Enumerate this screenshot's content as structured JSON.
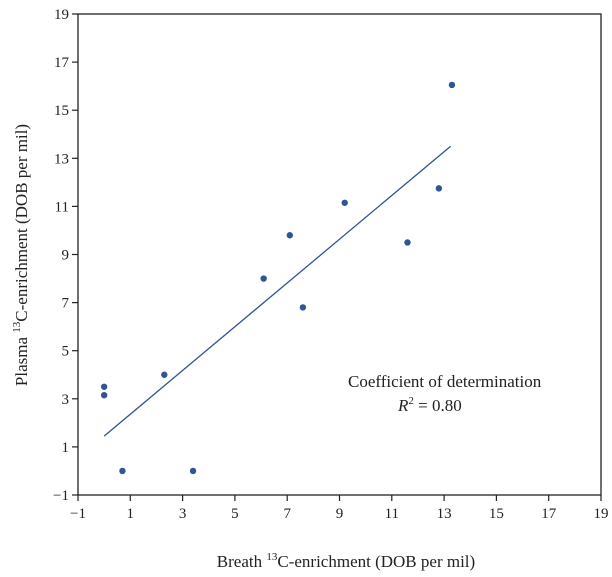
{
  "chart_data": {
    "type": "scatter",
    "xlabel_prefix": "Breath ",
    "xlabel_sup": "13",
    "xlabel_suffix": "C-enrichment (DOB per mil)",
    "ylabel_prefix": "Plasma ",
    "ylabel_sup": "13",
    "ylabel_suffix": "C-enrichment (DOB per mil)",
    "xlim": [
      -1,
      19
    ],
    "ylim": [
      -1,
      19
    ],
    "xticks": [
      -1,
      1,
      3,
      5,
      7,
      9,
      11,
      13,
      15,
      17,
      19
    ],
    "yticks": [
      -1,
      1,
      3,
      5,
      7,
      9,
      11,
      13,
      15,
      17,
      19
    ],
    "points": [
      {
        "x": 0.0,
        "y": 3.5
      },
      {
        "x": 0.0,
        "y": 3.15
      },
      {
        "x": 0.7,
        "y": 0.0
      },
      {
        "x": 2.3,
        "y": 4.0
      },
      {
        "x": 3.4,
        "y": 0.0
      },
      {
        "x": 6.1,
        "y": 8.0
      },
      {
        "x": 7.1,
        "y": 9.8
      },
      {
        "x": 7.6,
        "y": 6.8
      },
      {
        "x": 9.2,
        "y": 11.15
      },
      {
        "x": 11.6,
        "y": 9.5
      },
      {
        "x": 12.8,
        "y": 11.75
      },
      {
        "x": 13.3,
        "y": 16.05
      }
    ],
    "fit_line": {
      "x": [
        0.0,
        13.25
      ],
      "y": [
        1.45,
        13.5
      ]
    },
    "annotation_line1": "Coefficient of determination",
    "annotation_r": "R",
    "annotation_sup": "2",
    "annotation_value": " = 0.80",
    "colors": {
      "points": "#2f5597",
      "line": "#2f5597",
      "axis": "#222222"
    },
    "grid": false
  }
}
